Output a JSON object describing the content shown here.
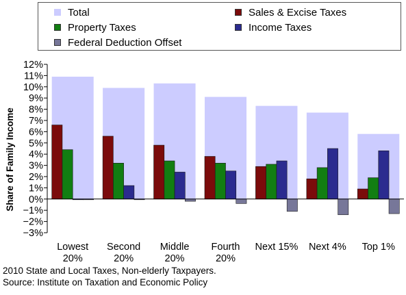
{
  "chart_data": {
    "type": "bar",
    "title": "",
    "xlabel": "",
    "ylabel": "Share of Family Income",
    "ylim": [
      -3,
      12
    ],
    "ytick_step": 1,
    "categories": [
      "Lowest 20%",
      "Second 20%",
      "Middle 20%",
      "Fourth 20%",
      "Next 15%",
      "Next 4%",
      "Top 1%"
    ],
    "total": {
      "name": "Total",
      "color": "#ccccff",
      "values": [
        10.9,
        9.9,
        10.3,
        9.1,
        8.3,
        7.7,
        5.8
      ]
    },
    "series": [
      {
        "name": "Sales & Excise Taxes",
        "color": "#7b0b0b",
        "values": [
          6.6,
          5.6,
          4.8,
          3.8,
          2.9,
          1.8,
          0.9
        ]
      },
      {
        "name": "Property Taxes",
        "color": "#127e12",
        "values": [
          4.4,
          3.2,
          3.4,
          3.2,
          3.1,
          2.8,
          1.9
        ]
      },
      {
        "name": "Income Taxes",
        "color": "#2b2b8f",
        "values": [
          -0.05,
          1.2,
          2.4,
          2.5,
          3.4,
          4.5,
          4.3
        ]
      },
      {
        "name": "Federal Deduction Offset",
        "color": "#777799",
        "values": [
          -0.05,
          -0.05,
          -0.2,
          -0.4,
          -1.1,
          -1.4,
          -1.3
        ]
      }
    ],
    "grid": false,
    "legend_position": "top"
  },
  "footnotes": {
    "line1": "2010 State and Local Taxes, Non-elderly Taxpayers.",
    "line2": "Source: Institute on Taxation and Economic Policy"
  }
}
